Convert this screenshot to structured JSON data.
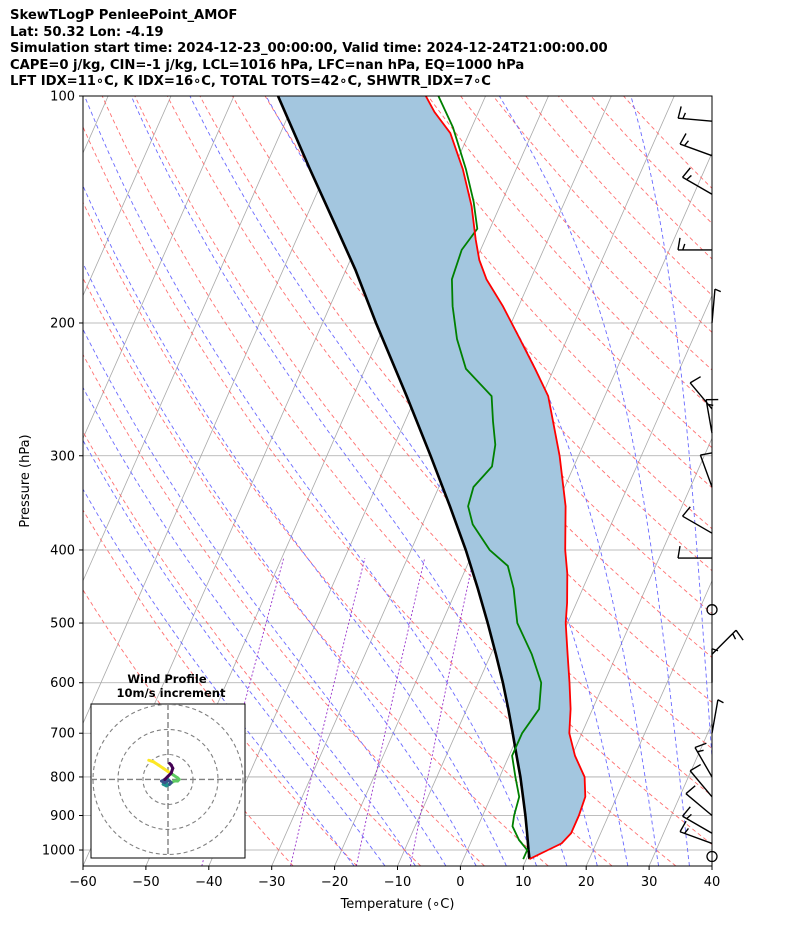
{
  "header": {
    "line1": "SkewTLogP PenleePoint_AMOF",
    "line2": "Lat: 50.32   Lon: -4.19",
    "line3": "Simulation start time: 2024-12-23_00:00:00, Valid time: 2024-12-24T21:00:00.00",
    "line4": "CAPE=0 j/kg, CIN=-1 j/kg, LCL=1016 hPa, LFC=nan hPa, EQ=1000 hPa",
    "line5": "LFT IDX=11∘C, K IDX=16∘C, TOTAL TOTS=42∘C, SHWTR_IDX=7∘C"
  },
  "chart_data": {
    "type": "line",
    "subtype": "skew-T log-P diagram",
    "xlabel": "Temperature (∘C)",
    "ylabel": "Pressure (hPa)",
    "xlim": [
      -60,
      40
    ],
    "ylim": [
      1050,
      100
    ],
    "y_scale": "log",
    "x_ticks": [
      -60,
      -50,
      -40,
      -30,
      -20,
      -10,
      0,
      10,
      20,
      30,
      40
    ],
    "x_tick_labels": [
      "−60",
      "−50",
      "−40",
      "−30",
      "−20",
      "−10",
      "0",
      "10",
      "20",
      "30",
      "40"
    ],
    "y_ticks": [
      100,
      200,
      300,
      400,
      500,
      600,
      700,
      800,
      900,
      1000
    ],
    "grid": true,
    "colors": {
      "temperature": "#ff0000",
      "dewpoint": "#008000",
      "parcel": "#000000",
      "shading": "#a3c6df",
      "dry_adiabats": "#ff6060",
      "moist_adiabats": "#6a6aff",
      "mixing_ratio": "#9933cc",
      "isotherms": "#a9a9a9"
    },
    "series": [
      {
        "id": "temperature",
        "points": [
          [
            1028,
            10.5
          ],
          [
            1000,
            12.8
          ],
          [
            980,
            14.5
          ],
          [
            950,
            15.3
          ],
          [
            900,
            15.3
          ],
          [
            850,
            15.0
          ],
          [
            800,
            13.5
          ],
          [
            750,
            10.5
          ],
          [
            700,
            8.0
          ],
          [
            650,
            6.5
          ],
          [
            600,
            4.5
          ],
          [
            550,
            2.2
          ],
          [
            500,
            -0.3
          ],
          [
            470,
            -1.5
          ],
          [
            430,
            -3.5
          ],
          [
            400,
            -5.5
          ],
          [
            350,
            -8.5
          ],
          [
            300,
            -13.0
          ],
          [
            250,
            -19.0
          ],
          [
            230,
            -23.0
          ],
          [
            210,
            -27.5
          ],
          [
            190,
            -32.5
          ],
          [
            175,
            -37.0
          ],
          [
            165,
            -39.5
          ],
          [
            155,
            -41.5
          ],
          [
            140,
            -44.5
          ],
          [
            125,
            -48.5
          ],
          [
            112,
            -53.0
          ],
          [
            105,
            -57.0
          ],
          [
            100,
            -59.5
          ]
        ]
      },
      {
        "id": "dewpoint",
        "points": [
          [
            1028,
            9.5
          ],
          [
            1000,
            9.5
          ],
          [
            970,
            7.5
          ],
          [
            930,
            5.5
          ],
          [
            900,
            5.0
          ],
          [
            850,
            4.5
          ],
          [
            800,
            2.5
          ],
          [
            750,
            0.5
          ],
          [
            700,
            0.5
          ],
          [
            650,
            1.5
          ],
          [
            600,
            0.0
          ],
          [
            550,
            -3.5
          ],
          [
            500,
            -8.0
          ],
          [
            450,
            -11.0
          ],
          [
            420,
            -13.5
          ],
          [
            400,
            -17.5
          ],
          [
            370,
            -22.0
          ],
          [
            350,
            -24.0
          ],
          [
            330,
            -24.5
          ],
          [
            310,
            -23.0
          ],
          [
            290,
            -24.0
          ],
          [
            270,
            -26.0
          ],
          [
            250,
            -28.0
          ],
          [
            230,
            -34.0
          ],
          [
            210,
            -37.5
          ],
          [
            190,
            -40.5
          ],
          [
            175,
            -42.5
          ],
          [
            160,
            -43.0
          ],
          [
            150,
            -42.0
          ],
          [
            138,
            -44.5
          ],
          [
            125,
            -48.0
          ],
          [
            110,
            -53.0
          ],
          [
            100,
            -57.5
          ]
        ]
      },
      {
        "id": "parcel",
        "points": [
          [
            1028,
            10.5
          ],
          [
            1000,
            9.7
          ],
          [
            950,
            8.3
          ],
          [
            900,
            6.8
          ],
          [
            850,
            5.1
          ],
          [
            800,
            3.3
          ],
          [
            750,
            1.2
          ],
          [
            700,
            -1.0
          ],
          [
            650,
            -3.4
          ],
          [
            600,
            -6.1
          ],
          [
            550,
            -9.2
          ],
          [
            500,
            -12.7
          ],
          [
            450,
            -16.7
          ],
          [
            400,
            -21.3
          ],
          [
            350,
            -26.9
          ],
          [
            300,
            -33.5
          ],
          [
            250,
            -41.5
          ],
          [
            200,
            -51.5
          ],
          [
            170,
            -58.5
          ],
          [
            150,
            -64.3
          ],
          [
            125,
            -72.8
          ],
          [
            100,
            -83.0
          ]
        ]
      }
    ],
    "wind_barbs": [
      {
        "p": 1020,
        "speed": 0,
        "dir": 0
      },
      {
        "p": 980,
        "speed": 15,
        "dir": 290
      },
      {
        "p": 950,
        "speed": 15,
        "dir": 300
      },
      {
        "p": 900,
        "speed": 10,
        "dir": 310
      },
      {
        "p": 850,
        "speed": 10,
        "dir": 320
      },
      {
        "p": 800,
        "speed": 15,
        "dir": 330
      },
      {
        "p": 700,
        "speed": 5,
        "dir": 10
      },
      {
        "p": 600,
        "speed": 5,
        "dir": 0
      },
      {
        "p": 550,
        "speed": 15,
        "dir": 45
      },
      {
        "p": 480,
        "speed": 0,
        "dir": 0
      },
      {
        "p": 410,
        "speed": 10,
        "dir": 270
      },
      {
        "p": 380,
        "speed": 10,
        "dir": 300
      },
      {
        "p": 330,
        "speed": 10,
        "dir": 340
      },
      {
        "p": 280,
        "speed": 15,
        "dir": 350
      },
      {
        "p": 260,
        "speed": 10,
        "dir": 320
      },
      {
        "p": 200,
        "speed": 5,
        "dir": 5
      },
      {
        "p": 160,
        "speed": 15,
        "dir": 270
      },
      {
        "p": 135,
        "speed": 15,
        "dir": 300
      },
      {
        "p": 120,
        "speed": 15,
        "dir": 290
      },
      {
        "p": 108,
        "speed": 15,
        "dir": 275
      }
    ],
    "inset": {
      "title": "Wind Profile",
      "subtitle": "10m/s increment",
      "rings": 3,
      "hodograph": [
        [
          -12,
          12
        ],
        [
          -9,
          11
        ],
        [
          -6,
          9
        ],
        [
          -3,
          7
        ],
        [
          0,
          5
        ],
        [
          3,
          3
        ],
        [
          6,
          1
        ],
        [
          7,
          0
        ],
        [
          6,
          -1
        ],
        [
          4,
          -1
        ],
        [
          2,
          -2
        ],
        [
          1,
          -1
        ],
        [
          0,
          0
        ],
        [
          -1,
          -2
        ],
        [
          -3,
          -3
        ],
        [
          -1,
          -4
        ],
        [
          1,
          -3
        ],
        [
          2,
          -2
        ],
        [
          1,
          -1
        ],
        [
          -1,
          -1
        ],
        [
          -2,
          -2
        ],
        [
          -4,
          -1
        ],
        [
          -2,
          0
        ],
        [
          0,
          2
        ],
        [
          2,
          4
        ],
        [
          3,
          7
        ],
        [
          2,
          9
        ],
        [
          1,
          10
        ]
      ]
    }
  }
}
